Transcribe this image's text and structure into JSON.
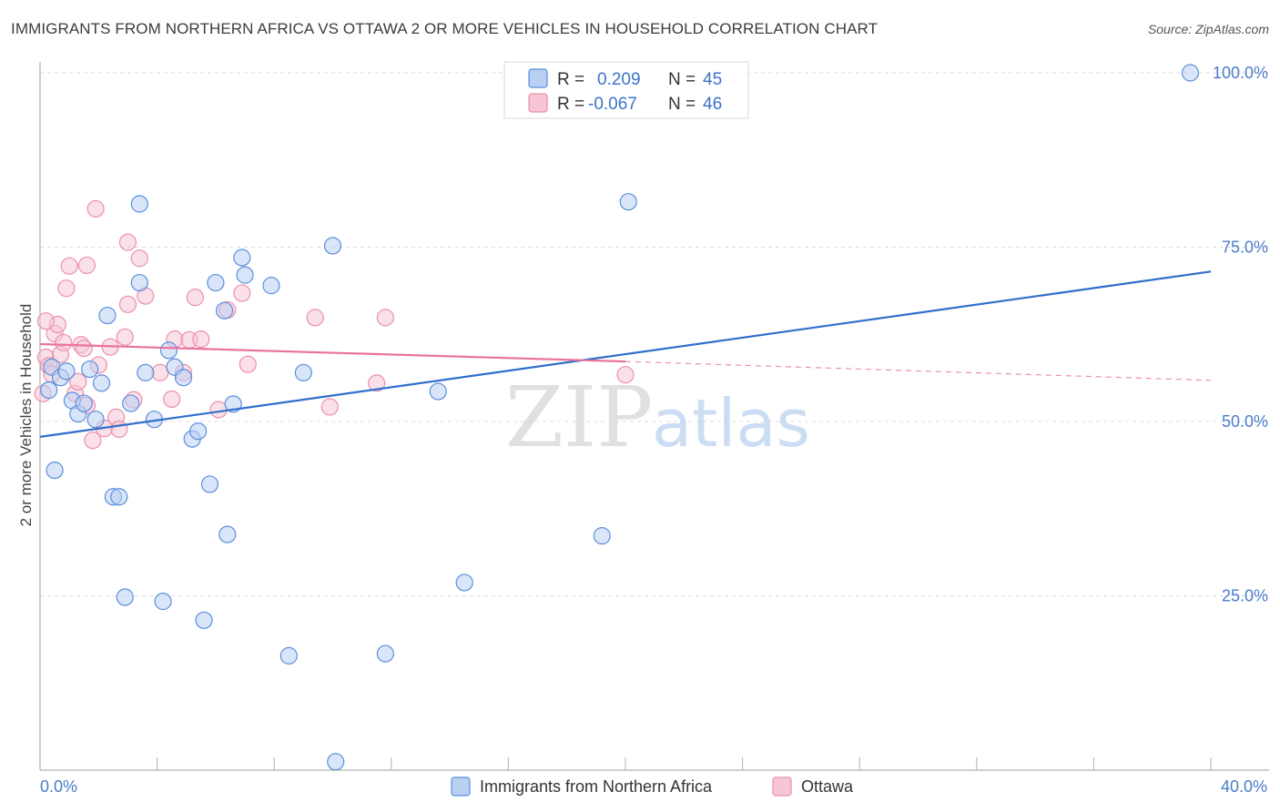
{
  "title": "IMMIGRANTS FROM NORTHERN AFRICA VS OTTAWA 2 OR MORE VEHICLES IN HOUSEHOLD CORRELATION CHART",
  "source": "Source: ZipAtlas.com",
  "colors": {
    "blue": "#5b8fdc",
    "blue_fill": "#b9d0f3",
    "blue_line": "#2f6fcc",
    "pink": "#ec8fae",
    "pink_fill": "#f6c6d6",
    "pink_line": "#e8739a",
    "tick_text": "#4a7cc9"
  },
  "legend": {
    "r_label": "R =",
    "n_label": "N =",
    "entries": [
      {
        "r": "0.209",
        "n": "45"
      },
      {
        "r": "-0.067",
        "n": "46"
      }
    ]
  },
  "watermark": {
    "zip": "ZIP",
    "atlas": "atlas"
  },
  "chart_data": {
    "type": "scatter",
    "title": "IMMIGRANTS FROM NORTHERN AFRICA VS OTTAWA 2 OR MORE VEHICLES IN HOUSEHOLD CORRELATION CHART",
    "xlabel": "",
    "ylabel": "2 or more Vehicles in Household",
    "xlim": [
      0,
      40
    ],
    "ylim": [
      0,
      102
    ],
    "x_tick_labels": [
      "0.0%",
      "40.0%"
    ],
    "y_ticks": [
      25,
      50,
      75,
      100
    ],
    "y_tick_labels": [
      "25.0%",
      "50.0%",
      "75.0%",
      "100.0%"
    ],
    "grid": true,
    "legend_position": "top-center",
    "series": [
      {
        "name": "Immigrants from Northern Africa",
        "color": "#5b8fdc",
        "trend": {
          "x": [
            0,
            40
          ],
          "y": [
            47.8,
            71.5
          ]
        },
        "points": [
          [
            0.3,
            54.5
          ],
          [
            0.4,
            57.8
          ],
          [
            0.5,
            43.0
          ],
          [
            0.7,
            56.3
          ],
          [
            0.9,
            57.2
          ],
          [
            1.1,
            53.0
          ],
          [
            1.3,
            51.1
          ],
          [
            1.5,
            52.6
          ],
          [
            1.7,
            57.5
          ],
          [
            1.9,
            50.3
          ],
          [
            2.1,
            55.5
          ],
          [
            2.3,
            65.2
          ],
          [
            2.5,
            39.2
          ],
          [
            2.7,
            39.2
          ],
          [
            2.9,
            24.8
          ],
          [
            3.1,
            52.6
          ],
          [
            3.4,
            81.2
          ],
          [
            3.4,
            69.9
          ],
          [
            3.6,
            57.0
          ],
          [
            3.9,
            50.3
          ],
          [
            4.2,
            24.2
          ],
          [
            4.4,
            60.2
          ],
          [
            4.6,
            57.8
          ],
          [
            4.9,
            56.3
          ],
          [
            5.2,
            47.5
          ],
          [
            5.4,
            48.6
          ],
          [
            5.6,
            21.5
          ],
          [
            5.8,
            41.0
          ],
          [
            6.0,
            69.9
          ],
          [
            6.3,
            65.9
          ],
          [
            6.4,
            33.8
          ],
          [
            6.6,
            52.5
          ],
          [
            6.9,
            73.5
          ],
          [
            7.0,
            71.0
          ],
          [
            7.9,
            69.5
          ],
          [
            8.5,
            16.4
          ],
          [
            9.0,
            57.0
          ],
          [
            10.0,
            75.2
          ],
          [
            10.1,
            1.2
          ],
          [
            11.8,
            16.7
          ],
          [
            13.6,
            54.3
          ],
          [
            14.5,
            26.9
          ],
          [
            19.2,
            33.6
          ],
          [
            20.1,
            81.5
          ],
          [
            39.3,
            100.0
          ]
        ]
      },
      {
        "name": "Ottawa",
        "color": "#ec8fae",
        "trend": {
          "x": [
            0,
            20
          ],
          "y": [
            61.1,
            58.6
          ]
        },
        "trend_dashed": {
          "x": [
            20,
            40
          ],
          "y": [
            58.6,
            55.9
          ]
        },
        "points": [
          [
            0.1,
            54.0
          ],
          [
            0.2,
            59.2
          ],
          [
            0.3,
            58.0
          ],
          [
            0.4,
            56.8
          ],
          [
            0.5,
            62.6
          ],
          [
            0.6,
            63.9
          ],
          [
            0.7,
            59.6
          ],
          [
            0.8,
            61.3
          ],
          [
            0.9,
            69.1
          ],
          [
            1.0,
            72.3
          ],
          [
            1.2,
            54.0
          ],
          [
            1.3,
            55.7
          ],
          [
            1.4,
            61.0
          ],
          [
            1.5,
            60.5
          ],
          [
            1.6,
            72.4
          ],
          [
            1.6,
            52.3
          ],
          [
            1.8,
            47.3
          ],
          [
            1.9,
            80.5
          ],
          [
            2.0,
            58.1
          ],
          [
            2.2,
            49.0
          ],
          [
            2.4,
            60.7
          ],
          [
            2.6,
            50.6
          ],
          [
            2.7,
            48.9
          ],
          [
            2.9,
            62.1
          ],
          [
            3.0,
            75.7
          ],
          [
            3.0,
            66.8
          ],
          [
            3.2,
            53.1
          ],
          [
            3.4,
            73.4
          ],
          [
            3.6,
            68.0
          ],
          [
            4.1,
            57.0
          ],
          [
            4.5,
            53.2
          ],
          [
            4.6,
            61.8
          ],
          [
            4.9,
            57.0
          ],
          [
            5.1,
            61.7
          ],
          [
            5.3,
            67.8
          ],
          [
            5.5,
            61.8
          ],
          [
            6.1,
            51.7
          ],
          [
            6.4,
            66.0
          ],
          [
            6.9,
            68.4
          ],
          [
            7.1,
            58.2
          ],
          [
            9.4,
            64.9
          ],
          [
            9.9,
            52.1
          ],
          [
            11.5,
            55.5
          ],
          [
            11.8,
            64.9
          ],
          [
            20.0,
            56.7
          ],
          [
            0.2,
            64.4
          ]
        ]
      }
    ]
  }
}
